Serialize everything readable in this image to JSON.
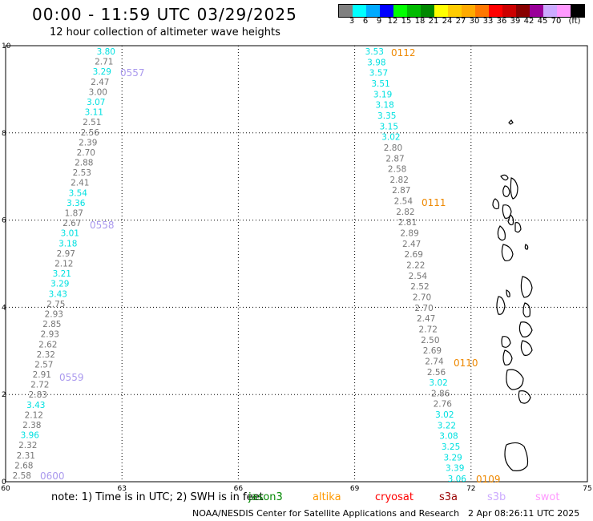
{
  "title": "00:00 - 11:59 UTC 03/29/2025",
  "subtitle": "12 hour collection of altimeter wave heights",
  "colorbar": {
    "colors": [
      "#808080",
      "#00ffff",
      "#00aaff",
      "#0000ff",
      "#00ff00",
      "#00bb00",
      "#008800",
      "#ffff00",
      "#ffcc00",
      "#ffaa00",
      "#ff7700",
      "#ff0000",
      "#cc0000",
      "#880000",
      "#990099",
      "#ccaaff",
      "#ff99ff",
      "#000000"
    ],
    "labels": [
      "3",
      "6",
      "9",
      "12",
      "15",
      "18",
      "21",
      "24",
      "27",
      "30",
      "33",
      "36",
      "39",
      "42",
      "45",
      "70",
      "(ft)"
    ]
  },
  "axes": {
    "x_ticks": [
      "60",
      "63",
      "66",
      "69",
      "72",
      "75"
    ],
    "y_ticks": [
      "0",
      "2",
      "4",
      "6",
      "8",
      "10"
    ]
  },
  "tracks": {
    "track_1": {
      "time_labels": [
        "0557",
        "0558",
        "0559",
        "0600"
      ],
      "values": [
        "3.80",
        "2.71",
        "3.29",
        "2.47",
        "3.00",
        "3.07",
        "3.11",
        "2.51",
        "2.56",
        "2.39",
        "2.70",
        "2.88",
        "2.53",
        "2.41",
        "3.54",
        "3.36",
        "1.87",
        "2.67",
        "3.01",
        "3.18",
        "2.97",
        "2.12",
        "3.21",
        "3.29",
        "3.43",
        "2.75",
        "2.93",
        "2.85",
        "2.93",
        "2.62",
        "2.32",
        "2.57",
        "2.91",
        "2.72",
        "2.83",
        "3.43",
        "2.12",
        "2.38",
        "3.96",
        "2.32",
        "2.31",
        "2.68",
        "2.58"
      ],
      "colors": [
        "c",
        "g",
        "c",
        "g",
        "g",
        "c",
        "c",
        "g",
        "g",
        "g",
        "g",
        "g",
        "g",
        "g",
        "c",
        "c",
        "g",
        "g",
        "c",
        "c",
        "g",
        "g",
        "c",
        "c",
        "c",
        "g",
        "g",
        "g",
        "g",
        "g",
        "g",
        "g",
        "g",
        "g",
        "g",
        "c",
        "g",
        "g",
        "c",
        "g",
        "g",
        "g",
        "g"
      ]
    },
    "track_2": {
      "time_labels": [
        "0112",
        "0111",
        "0110",
        "0109"
      ],
      "values": [
        "3.53",
        "3.98",
        "3.57",
        "3.51",
        "3.19",
        "3.18",
        "3.35",
        "3.15",
        "3.02",
        "2.80",
        "2.87",
        "2.58",
        "2.82",
        "2.87",
        "2.54",
        "2.82",
        "2.81",
        "2.89",
        "2.47",
        "2.69",
        "2.22",
        "2.54",
        "2.52",
        "2.70",
        "2.70",
        "2.47",
        "2.72",
        "2.50",
        "2.69",
        "2.74",
        "2.56",
        "3.02",
        "2.86",
        "2.76",
        "3.02",
        "3.22",
        "3.08",
        "3.25",
        "3.29",
        "3.39",
        "3.06"
      ],
      "colors": [
        "c",
        "c",
        "c",
        "c",
        "c",
        "c",
        "c",
        "c",
        "c",
        "g",
        "g",
        "g",
        "g",
        "g",
        "g",
        "g",
        "g",
        "g",
        "g",
        "g",
        "g",
        "g",
        "g",
        "g",
        "g",
        "g",
        "g",
        "g",
        "g",
        "g",
        "g",
        "c",
        "g",
        "g",
        "c",
        "c",
        "c",
        "c",
        "c",
        "c",
        "c"
      ]
    }
  },
  "footer": {
    "note": "note:  1) Time is in UTC;  2) SWH is in feet",
    "legend": [
      {
        "label": "jason3",
        "color": "#008800"
      },
      {
        "label": "altika",
        "color": "#ff9900"
      },
      {
        "label": "cryosat",
        "color": "#ff0000"
      },
      {
        "label": "s3a",
        "color": "#990000"
      },
      {
        "label": "s3b",
        "color": "#ccaaff"
      },
      {
        "label": "swot",
        "color": "#ff99ff"
      }
    ],
    "credit": "NOAA/NESDIS Center for Satellite Applications and Research",
    "timestamp": "2 Apr 08:26:11 UTC 2025"
  },
  "label_colors": {
    "cyan": "#00e0e0",
    "gray": "#777777",
    "track1_time": "#aa99ee",
    "track2_time": "#ee8800"
  }
}
